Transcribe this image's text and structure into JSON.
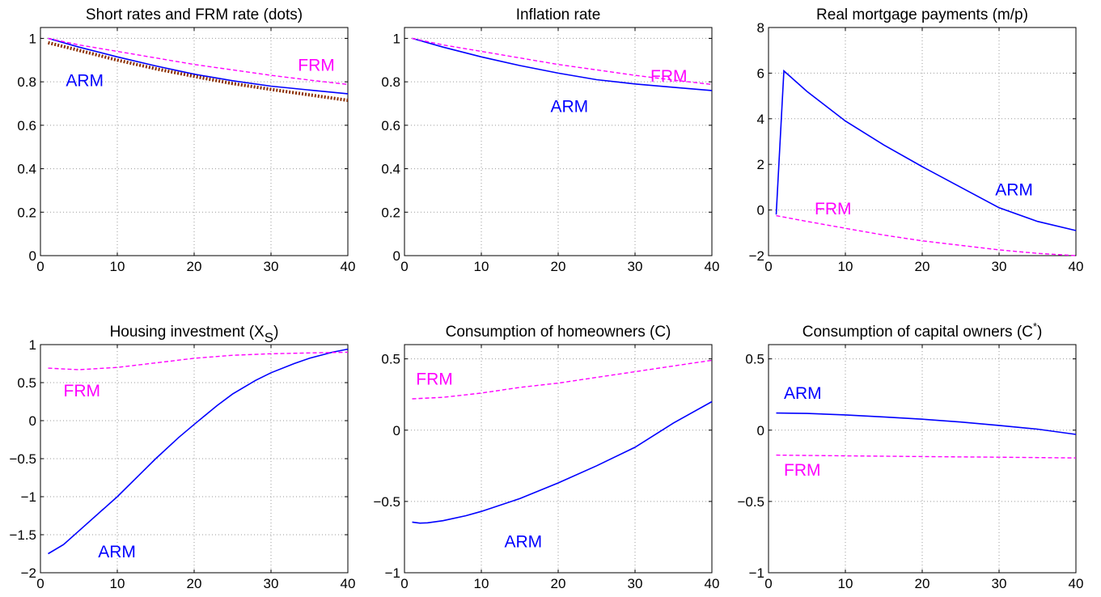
{
  "colors": {
    "arm": "#0000ff",
    "frm": "#ff00ff",
    "dots": "#8b2e00"
  },
  "chart_data": [
    {
      "type": "line",
      "title": "Short rates and FRM rate (dots)",
      "xlim": [
        0,
        40
      ],
      "ylim": [
        0,
        1.05
      ],
      "xticks": [
        0,
        10,
        20,
        30,
        40
      ],
      "xtick_labels": [
        "0",
        "10",
        "20",
        "30",
        "40"
      ],
      "yticks": [
        0,
        0.2,
        0.4,
        0.6,
        0.8,
        1
      ],
      "ytick_labels": [
        "0",
        "0.2",
        "0.4",
        "0.6",
        "0.8",
        "1"
      ],
      "grid": true,
      "series": [
        {
          "label": "ARM",
          "style": "solid",
          "color": "arm",
          "x": [
            1,
            5,
            10,
            15,
            20,
            25,
            30,
            35,
            40
          ],
          "y": [
            1.0,
            0.96,
            0.915,
            0.873,
            0.835,
            0.805,
            0.78,
            0.762,
            0.745
          ]
        },
        {
          "label": "FRM",
          "style": "dashed",
          "color": "frm",
          "x": [
            1,
            5,
            10,
            15,
            20,
            25,
            30,
            35,
            40
          ],
          "y": [
            1.0,
            0.97,
            0.94,
            0.91,
            0.88,
            0.855,
            0.83,
            0.808,
            0.788
          ]
        },
        {
          "style": "dotted",
          "color": "dots",
          "x": [
            1,
            5,
            10,
            15,
            20,
            25,
            30,
            35,
            40
          ],
          "y": [
            0.98,
            0.945,
            0.9,
            0.86,
            0.825,
            0.792,
            0.765,
            0.74,
            0.715
          ]
        }
      ],
      "annotations": [
        {
          "text": "FRM",
          "color": "frm",
          "x": 33.5,
          "y": 0.85
        },
        {
          "text": "ARM",
          "color": "arm",
          "x": 3.3,
          "y": 0.78
        }
      ]
    },
    {
      "type": "line",
      "title": "Inflation rate",
      "xlim": [
        0,
        40
      ],
      "ylim": [
        0,
        1.05
      ],
      "xticks": [
        0,
        10,
        20,
        30,
        40
      ],
      "xtick_labels": [
        "0",
        "10",
        "20",
        "30",
        "40"
      ],
      "yticks": [
        0,
        0.2,
        0.4,
        0.6,
        0.8,
        1
      ],
      "ytick_labels": [
        "0",
        "0.2",
        "0.4",
        "0.6",
        "0.8",
        "1"
      ],
      "grid": true,
      "series": [
        {
          "label": "ARM",
          "style": "solid",
          "color": "arm",
          "x": [
            1,
            5,
            10,
            15,
            20,
            25,
            30,
            35,
            40
          ],
          "y": [
            1.0,
            0.96,
            0.915,
            0.875,
            0.84,
            0.81,
            0.79,
            0.775,
            0.76
          ]
        },
        {
          "label": "FRM",
          "style": "dashed",
          "color": "frm",
          "x": [
            1,
            5,
            10,
            15,
            20,
            25,
            30,
            35,
            40
          ],
          "y": [
            1.0,
            0.97,
            0.94,
            0.91,
            0.88,
            0.855,
            0.83,
            0.808,
            0.788
          ]
        }
      ],
      "annotations": [
        {
          "text": "FRM",
          "color": "frm",
          "x": 32,
          "y": 0.8
        },
        {
          "text": "ARM",
          "color": "arm",
          "x": 19,
          "y": 0.66
        }
      ]
    },
    {
      "type": "line",
      "title": "Real mortgage payments (m/p)",
      "xlim": [
        0,
        40
      ],
      "ylim": [
        -2,
        8
      ],
      "xticks": [
        0,
        10,
        20,
        30,
        40
      ],
      "xtick_labels": [
        "0",
        "10",
        "20",
        "30",
        "40"
      ],
      "yticks": [
        -2,
        0,
        2,
        4,
        6,
        8
      ],
      "ytick_labels": [
        "−2",
        "0",
        "2",
        "4",
        "6",
        "8"
      ],
      "grid": true,
      "series": [
        {
          "label": "ARM",
          "style": "solid",
          "color": "arm",
          "x": [
            1,
            2,
            5,
            10,
            15,
            20,
            25,
            30,
            35,
            40
          ],
          "y": [
            -0.2,
            6.1,
            5.2,
            3.9,
            2.85,
            1.9,
            1.0,
            0.1,
            -0.5,
            -0.9
          ]
        },
        {
          "label": "FRM",
          "style": "dashed",
          "color": "frm",
          "x": [
            1,
            5,
            10,
            15,
            20,
            25,
            30,
            35,
            40
          ],
          "y": [
            -0.25,
            -0.5,
            -0.8,
            -1.1,
            -1.35,
            -1.55,
            -1.75,
            -1.9,
            -2.0
          ]
        }
      ],
      "annotations": [
        {
          "text": "FRM",
          "color": "frm",
          "x": 6,
          "y": -0.2
        },
        {
          "text": "ARM",
          "color": "arm",
          "x": 29.5,
          "y": 0.65
        }
      ]
    },
    {
      "type": "line",
      "title": "Housing investment (X",
      "title_sub": "S",
      "title_end": ")",
      "xlim": [
        0,
        40
      ],
      "ylim": [
        -2,
        1
      ],
      "xticks": [
        0,
        10,
        20,
        30,
        40
      ],
      "xtick_labels": [
        "0",
        "10",
        "20",
        "30",
        "40"
      ],
      "yticks": [
        -2,
        -1.5,
        -1,
        -0.5,
        0,
        0.5,
        1
      ],
      "ytick_labels": [
        "−2",
        "−1.5",
        "−1",
        "−0.5",
        "0",
        "0.5",
        "1"
      ],
      "grid": true,
      "series": [
        {
          "label": "ARM",
          "style": "solid",
          "color": "arm",
          "x": [
            1,
            3,
            5,
            8,
            10,
            13,
            15,
            18,
            20,
            23,
            25,
            28,
            30,
            33,
            35,
            38,
            40
          ],
          "y": [
            -1.75,
            -1.63,
            -1.45,
            -1.18,
            -1.0,
            -0.7,
            -0.5,
            -0.22,
            -0.05,
            0.2,
            0.35,
            0.53,
            0.63,
            0.75,
            0.82,
            0.9,
            0.94
          ]
        },
        {
          "label": "FRM",
          "style": "dashed",
          "color": "frm",
          "x": [
            1,
            5,
            10,
            15,
            20,
            25,
            30,
            35,
            40
          ],
          "y": [
            0.69,
            0.67,
            0.7,
            0.76,
            0.82,
            0.86,
            0.88,
            0.89,
            0.9
          ]
        }
      ],
      "annotations": [
        {
          "text": "FRM",
          "color": "frm",
          "x": 3,
          "y": 0.32
        },
        {
          "text": "ARM",
          "color": "arm",
          "x": 7.5,
          "y": -1.8
        }
      ]
    },
    {
      "type": "line",
      "title": "Consumption of homeowners (C)",
      "xlim": [
        0,
        40
      ],
      "ylim": [
        -1,
        0.6
      ],
      "xticks": [
        0,
        10,
        20,
        30,
        40
      ],
      "xtick_labels": [
        "0",
        "10",
        "20",
        "30",
        "40"
      ],
      "yticks": [
        -1,
        -0.5,
        0,
        0.5
      ],
      "ytick_labels": [
        "−1",
        "−0.5",
        "0",
        "0.5"
      ],
      "grid": true,
      "series": [
        {
          "label": "ARM",
          "style": "solid",
          "color": "arm",
          "x": [
            1,
            2,
            3,
            5,
            8,
            10,
            15,
            20,
            25,
            30,
            35,
            40
          ],
          "y": [
            -0.645,
            -0.652,
            -0.65,
            -0.635,
            -0.6,
            -0.57,
            -0.48,
            -0.37,
            -0.25,
            -0.12,
            0.05,
            0.2
          ]
        },
        {
          "label": "FRM",
          "style": "dashed",
          "color": "frm",
          "x": [
            1,
            5,
            10,
            15,
            20,
            25,
            30,
            35,
            40
          ],
          "y": [
            0.22,
            0.23,
            0.26,
            0.3,
            0.33,
            0.37,
            0.41,
            0.45,
            0.49
          ]
        }
      ],
      "annotations": [
        {
          "text": "FRM",
          "color": "frm",
          "x": 1.5,
          "y": 0.32
        },
        {
          "text": "ARM",
          "color": "arm",
          "x": 13,
          "y": -0.82
        }
      ]
    },
    {
      "type": "line",
      "title": "Consumption of capital owners (C",
      "title_sup": "*",
      "title_end": ")",
      "xlim": [
        0,
        40
      ],
      "ylim": [
        -1,
        0.6
      ],
      "xticks": [
        0,
        10,
        20,
        30,
        40
      ],
      "xtick_labels": [
        "0",
        "10",
        "20",
        "30",
        "40"
      ],
      "yticks": [
        -1,
        -0.5,
        0,
        0.5
      ],
      "ytick_labels": [
        "−1",
        "−0.5",
        "0",
        "0.5"
      ],
      "grid": true,
      "series": [
        {
          "label": "ARM",
          "style": "solid",
          "color": "arm",
          "x": [
            1,
            5,
            10,
            15,
            20,
            25,
            30,
            35,
            40
          ],
          "y": [
            0.12,
            0.117,
            0.107,
            0.093,
            0.077,
            0.057,
            0.033,
            0.007,
            -0.03
          ]
        },
        {
          "label": "FRM",
          "style": "dashed",
          "color": "frm",
          "x": [
            1,
            10,
            20,
            30,
            40
          ],
          "y": [
            -0.175,
            -0.18,
            -0.185,
            -0.19,
            -0.195
          ]
        }
      ],
      "annotations": [
        {
          "text": "ARM",
          "color": "arm",
          "x": 2,
          "y": 0.22
        },
        {
          "text": "FRM",
          "color": "frm",
          "x": 2,
          "y": -0.32
        }
      ]
    }
  ]
}
